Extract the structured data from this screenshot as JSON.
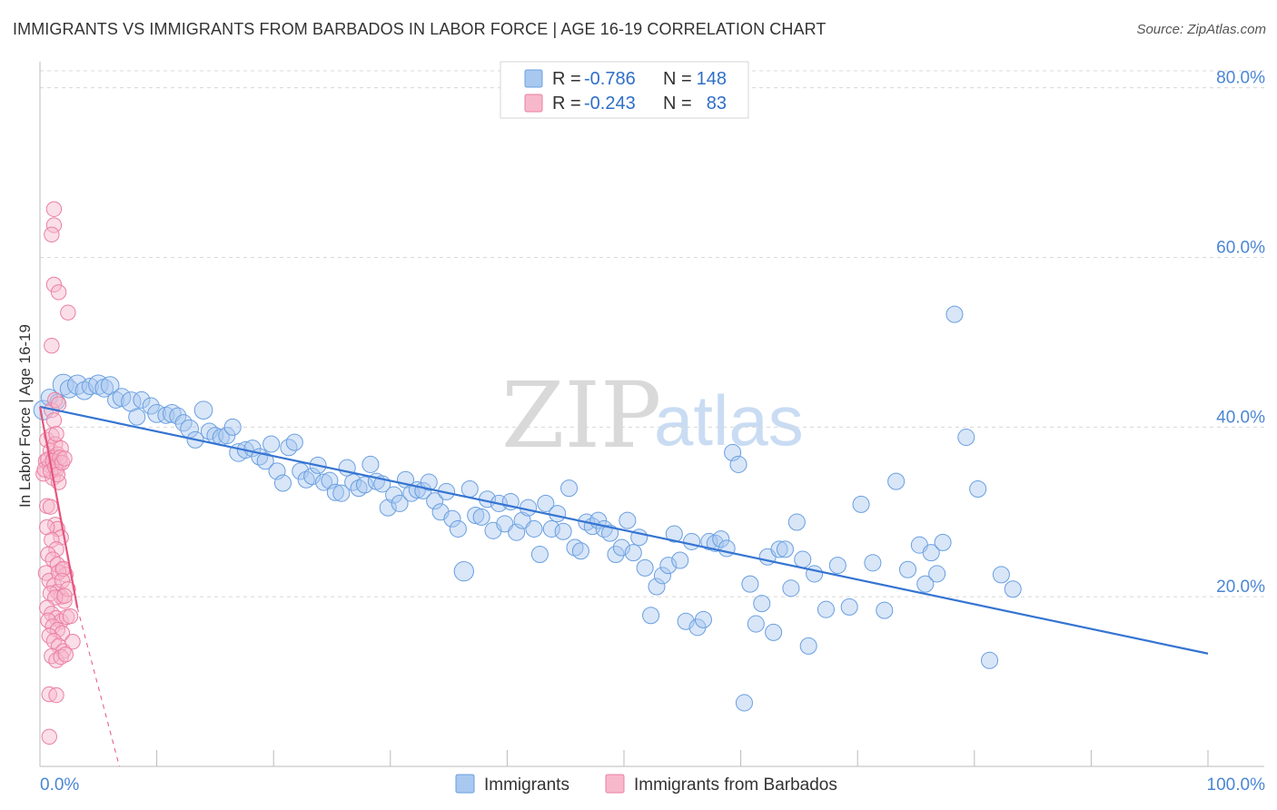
{
  "title": "IMMIGRANTS VS IMMIGRANTS FROM BARBADOS IN LABOR FORCE | AGE 16-19 CORRELATION CHART",
  "source": "Source: ZipAtlas.com",
  "watermark": {
    "zip": "ZIP",
    "atlas": "atlas"
  },
  "colors": {
    "blue_fill": "#a8c8f0",
    "blue_stroke": "#6a9fe0",
    "blue_line": "#3574d2",
    "pink_fill": "#f7b8cb",
    "pink_stroke": "#eb7fa3",
    "pink_line": "#e5557f",
    "axis_text": "#4a86d4",
    "grid": "#d8d8d8"
  },
  "legend_top": {
    "rows": [
      {
        "r_label": "R = ",
        "r_value": "-0.786",
        "n_label": "N = ",
        "n_value": "148",
        "color": "blue"
      },
      {
        "r_label": "R = ",
        "r_value": "-0.243",
        "n_label": "N = ",
        "n_value": "83",
        "color": "pink"
      }
    ]
  },
  "legend_bottom": [
    {
      "label": "Immigrants",
      "color": "blue"
    },
    {
      "label": "Immigrants from Barbados",
      "color": "pink"
    }
  ],
  "chart_data": {
    "type": "scatter",
    "ylabel": "In Labor Force | Age 16-19",
    "xlabel": "",
    "xlim": [
      0,
      100
    ],
    "ylim": [
      0,
      82
    ],
    "x_tick_labels": [
      {
        "value": 0,
        "label": "0.0%"
      },
      {
        "value": 100,
        "label": "100.0%"
      }
    ],
    "x_minor_ticks": [
      10,
      20,
      30,
      40,
      50,
      60,
      70,
      80,
      90,
      100
    ],
    "y_ticks": [
      {
        "value": 20,
        "label": "20.0%"
      },
      {
        "value": 40,
        "label": "40.0%"
      },
      {
        "value": 60,
        "label": "60.0%"
      },
      {
        "value": 80,
        "label": "80.0%"
      }
    ],
    "grid": "horizontal dashed",
    "legend_position": "top-center",
    "series": [
      {
        "name": "Immigrants",
        "color": "blue",
        "R": -0.786,
        "N": 148,
        "trend": {
          "x": [
            0,
            100
          ],
          "y": [
            42.4,
            13.3
          ],
          "dashed_extension": false
        },
        "points": [
          [
            0.3,
            42,
            13
          ],
          [
            0.8,
            43.5,
            11
          ],
          [
            1.5,
            43,
            10
          ],
          [
            2.0,
            45,
            14
          ],
          [
            2.5,
            44.5,
            12
          ],
          [
            3.2,
            45,
            13
          ],
          [
            3.8,
            44.3,
            12
          ],
          [
            4.3,
            44.8,
            11
          ],
          [
            5.0,
            45,
            13
          ],
          [
            5.5,
            44.6,
            12
          ],
          [
            6.0,
            44.9,
            12
          ],
          [
            6.5,
            43.2,
            11
          ],
          [
            7.0,
            43.5,
            12
          ],
          [
            7.8,
            43,
            13
          ],
          [
            8.3,
            41.2,
            11
          ],
          [
            8.7,
            43.2,
            11
          ],
          [
            9.5,
            42.5,
            11
          ],
          [
            10.0,
            41.6,
            12
          ],
          [
            10.8,
            41.4,
            11
          ],
          [
            11.3,
            41.6,
            12
          ],
          [
            11.8,
            41.3,
            11
          ],
          [
            12.3,
            40.5,
            11
          ],
          [
            12.8,
            39.8,
            12
          ],
          [
            13.3,
            38.5,
            11
          ],
          [
            14.0,
            42,
            12
          ],
          [
            14.5,
            39.5,
            11
          ],
          [
            15.0,
            39,
            11
          ],
          [
            15.5,
            38.8,
            11
          ],
          [
            16.0,
            39,
            11
          ],
          [
            16.5,
            40,
            11
          ],
          [
            17.0,
            37,
            12
          ],
          [
            17.6,
            37.3,
            11
          ],
          [
            18.2,
            37.5,
            11
          ],
          [
            18.8,
            36.5,
            11
          ],
          [
            19.3,
            36,
            11
          ],
          [
            19.8,
            38,
            11
          ],
          [
            20.3,
            34.8,
            11
          ],
          [
            20.8,
            33.4,
            11
          ],
          [
            21.3,
            37.6,
            11
          ],
          [
            21.8,
            38.2,
            11
          ],
          [
            22.3,
            34.8,
            11
          ],
          [
            22.8,
            33.8,
            11
          ],
          [
            23.3,
            34.2,
            11
          ],
          [
            23.8,
            35.5,
            11
          ],
          [
            24.3,
            33.5,
            11
          ],
          [
            24.8,
            33.7,
            11
          ],
          [
            25.3,
            32.3,
            11
          ],
          [
            25.8,
            32.2,
            11
          ],
          [
            26.3,
            35.2,
            11
          ],
          [
            26.8,
            33.5,
            11
          ],
          [
            27.3,
            32.8,
            11
          ],
          [
            27.8,
            33.2,
            11
          ],
          [
            28.3,
            35.6,
            11
          ],
          [
            28.8,
            33.6,
            11
          ],
          [
            29.3,
            33.3,
            11
          ],
          [
            29.8,
            30.5,
            11
          ],
          [
            30.3,
            32,
            11
          ],
          [
            30.8,
            31,
            11
          ],
          [
            31.3,
            33.8,
            11
          ],
          [
            31.8,
            32.2,
            11
          ],
          [
            32.3,
            32.6,
            11
          ],
          [
            32.8,
            32.5,
            11
          ],
          [
            33.3,
            33.5,
            11
          ],
          [
            33.8,
            31.3,
            11
          ],
          [
            34.3,
            30,
            11
          ],
          [
            34.8,
            32.4,
            11
          ],
          [
            35.3,
            29.2,
            11
          ],
          [
            35.8,
            28,
            11
          ],
          [
            36.3,
            23,
            13
          ],
          [
            36.8,
            32.7,
            11
          ],
          [
            37.3,
            29.6,
            11
          ],
          [
            37.8,
            29.4,
            11
          ],
          [
            38.3,
            31.5,
            11
          ],
          [
            38.8,
            27.8,
            11
          ],
          [
            39.3,
            31,
            11
          ],
          [
            39.8,
            28.6,
            11
          ],
          [
            40.3,
            31.2,
            11
          ],
          [
            40.8,
            27.6,
            11
          ],
          [
            41.3,
            29,
            11
          ],
          [
            41.8,
            30.5,
            11
          ],
          [
            42.3,
            28,
            11
          ],
          [
            42.8,
            25,
            11
          ],
          [
            43.3,
            31,
            11
          ],
          [
            43.8,
            28,
            11
          ],
          [
            44.3,
            29.8,
            11
          ],
          [
            44.8,
            27.7,
            11
          ],
          [
            45.3,
            32.8,
            11
          ],
          [
            45.8,
            25.8,
            11
          ],
          [
            46.3,
            25.4,
            11
          ],
          [
            46.8,
            28.8,
            11
          ],
          [
            47.3,
            28.3,
            11
          ],
          [
            47.8,
            29,
            11
          ],
          [
            48.3,
            28,
            11
          ],
          [
            48.8,
            27.5,
            11
          ],
          [
            49.3,
            25,
            11
          ],
          [
            49.8,
            25.8,
            11
          ],
          [
            50.3,
            29,
            11
          ],
          [
            50.8,
            25.2,
            11
          ],
          [
            51.3,
            27,
            11
          ],
          [
            51.8,
            23.4,
            11
          ],
          [
            52.3,
            17.8,
            11
          ],
          [
            52.8,
            21.2,
            11
          ],
          [
            53.3,
            22.5,
            11
          ],
          [
            53.8,
            23.7,
            11
          ],
          [
            54.3,
            27.4,
            11
          ],
          [
            54.8,
            24.3,
            11
          ],
          [
            55.3,
            17.1,
            11
          ],
          [
            55.8,
            26.5,
            11
          ],
          [
            56.3,
            16.4,
            11
          ],
          [
            56.8,
            17.3,
            11
          ],
          [
            57.3,
            26.5,
            11
          ],
          [
            57.8,
            26.3,
            11
          ],
          [
            58.3,
            26.8,
            11
          ],
          [
            58.8,
            25.7,
            11
          ],
          [
            59.3,
            37,
            11
          ],
          [
            59.8,
            35.6,
            11
          ],
          [
            60.3,
            7.5,
            11
          ],
          [
            60.8,
            21.5,
            11
          ],
          [
            61.3,
            16.8,
            11
          ],
          [
            61.8,
            19.2,
            11
          ],
          [
            62.3,
            24.7,
            11
          ],
          [
            62.8,
            15.8,
            11
          ],
          [
            63.3,
            25.6,
            11
          ],
          [
            63.8,
            25.6,
            11
          ],
          [
            64.3,
            21,
            11
          ],
          [
            64.8,
            28.8,
            11
          ],
          [
            65.3,
            24.4,
            11
          ],
          [
            65.8,
            14.2,
            11
          ],
          [
            66.3,
            22.7,
            11
          ],
          [
            67.3,
            18.5,
            11
          ],
          [
            68.3,
            23.7,
            11
          ],
          [
            69.3,
            18.8,
            11
          ],
          [
            70.3,
            30.9,
            11
          ],
          [
            71.3,
            24,
            11
          ],
          [
            72.3,
            18.4,
            11
          ],
          [
            73.3,
            33.6,
            11
          ],
          [
            74.3,
            23.2,
            11
          ],
          [
            75.3,
            26.1,
            11
          ],
          [
            75.8,
            21.5,
            11
          ],
          [
            76.3,
            25.2,
            11
          ],
          [
            76.8,
            22.7,
            11
          ],
          [
            77.3,
            26.4,
            11
          ],
          [
            78.3,
            53.3,
            11
          ],
          [
            79.3,
            38.8,
            11
          ],
          [
            80.3,
            32.7,
            11
          ],
          [
            81.3,
            12.5,
            11
          ],
          [
            82.3,
            22.6,
            11
          ],
          [
            83.3,
            20.9,
            11
          ]
        ]
      },
      {
        "name": "Immigrants from Barbados",
        "color": "pink",
        "R": -0.243,
        "N": 83,
        "trend": {
          "x": [
            0,
            3.2
          ],
          "y": [
            42.4,
            18.7
          ],
          "dashed_extension": {
            "x": [
              3.2,
              6.8
            ],
            "y": [
              18.7,
              0
            ]
          }
        },
        "points": [
          [
            0.3,
            34.5,
            10
          ],
          [
            0.5,
            36,
            10
          ],
          [
            0.6,
            38.5,
            10
          ],
          [
            0.8,
            35.5,
            10
          ],
          [
            0.9,
            37.2,
            10
          ],
          [
            1.0,
            39,
            10
          ],
          [
            1.1,
            34,
            10
          ],
          [
            1.2,
            36.5,
            10
          ],
          [
            1.3,
            38,
            10
          ],
          [
            1.4,
            35,
            10
          ],
          [
            1.5,
            36.8,
            10
          ],
          [
            1.6,
            33.5,
            10
          ],
          [
            1.7,
            35.8,
            10
          ],
          [
            1.8,
            37.5,
            10
          ],
          [
            0.4,
            35,
            10
          ],
          [
            0.7,
            36.2,
            10
          ],
          [
            0.9,
            34.8,
            10
          ],
          [
            1.1,
            36,
            10
          ],
          [
            1.3,
            35.3,
            10
          ],
          [
            1.5,
            34.4,
            10
          ],
          [
            1.7,
            36.4,
            10
          ],
          [
            1.9,
            35.8,
            10
          ],
          [
            2.1,
            36.3,
            10
          ],
          [
            1.0,
            42,
            10
          ],
          [
            1.3,
            43.2,
            10
          ],
          [
            1.6,
            42.7,
            10
          ],
          [
            1.2,
            40.8,
            10
          ],
          [
            1.4,
            39.2,
            10
          ],
          [
            1.2,
            65.7,
            10
          ],
          [
            1.2,
            63.8,
            10
          ],
          [
            1.0,
            62.7,
            10
          ],
          [
            1.2,
            56.8,
            10
          ],
          [
            1.6,
            55.9,
            10
          ],
          [
            2.4,
            53.5,
            10
          ],
          [
            1.0,
            49.6,
            10
          ],
          [
            0.6,
            30.7,
            10
          ],
          [
            0.9,
            30.6,
            10
          ],
          [
            1.3,
            28.5,
            10
          ],
          [
            1.5,
            28,
            10
          ],
          [
            1.8,
            27,
            10
          ],
          [
            0.6,
            28.2,
            10
          ],
          [
            1.0,
            26.7,
            10
          ],
          [
            1.4,
            25.6,
            10
          ],
          [
            0.7,
            25,
            10
          ],
          [
            1.1,
            24.4,
            10
          ],
          [
            1.5,
            23.8,
            10
          ],
          [
            1.9,
            23.2,
            10
          ],
          [
            2.2,
            22.6,
            10
          ],
          [
            0.5,
            22.8,
            10
          ],
          [
            0.8,
            21.9,
            10
          ],
          [
            1.2,
            21.3,
            10
          ],
          [
            1.5,
            20.6,
            10
          ],
          [
            1.8,
            20,
            10
          ],
          [
            2.1,
            19.5,
            10
          ],
          [
            0.9,
            20.4,
            10
          ],
          [
            1.3,
            19.9,
            10
          ],
          [
            0.6,
            18.7,
            10
          ],
          [
            1.0,
            18,
            10
          ],
          [
            1.4,
            17.5,
            10
          ],
          [
            1.8,
            17.1,
            10
          ],
          [
            2.3,
            17.6,
            10
          ],
          [
            2.6,
            17.7,
            10
          ],
          [
            0.7,
            17.2,
            10
          ],
          [
            1.1,
            16.5,
            10
          ],
          [
            1.5,
            16.1,
            10
          ],
          [
            1.9,
            15.7,
            10
          ],
          [
            0.8,
            15.4,
            10
          ],
          [
            1.2,
            14.8,
            10
          ],
          [
            1.6,
            14.2,
            10
          ],
          [
            2.0,
            13.6,
            10
          ],
          [
            1.0,
            13,
            10
          ],
          [
            1.4,
            12.5,
            10
          ],
          [
            1.8,
            12.9,
            10
          ],
          [
            2.2,
            13.2,
            10
          ],
          [
            2.8,
            14.7,
            10
          ],
          [
            0.8,
            8.5,
            10
          ],
          [
            1.4,
            8.4,
            10
          ],
          [
            0.8,
            3.5,
            10
          ],
          [
            1.6,
            22.9,
            10
          ],
          [
            2.0,
            23.3,
            10
          ],
          [
            1.9,
            21.9,
            10
          ],
          [
            2.4,
            20.9,
            10
          ],
          [
            2.1,
            20.1,
            10
          ]
        ]
      }
    ]
  }
}
